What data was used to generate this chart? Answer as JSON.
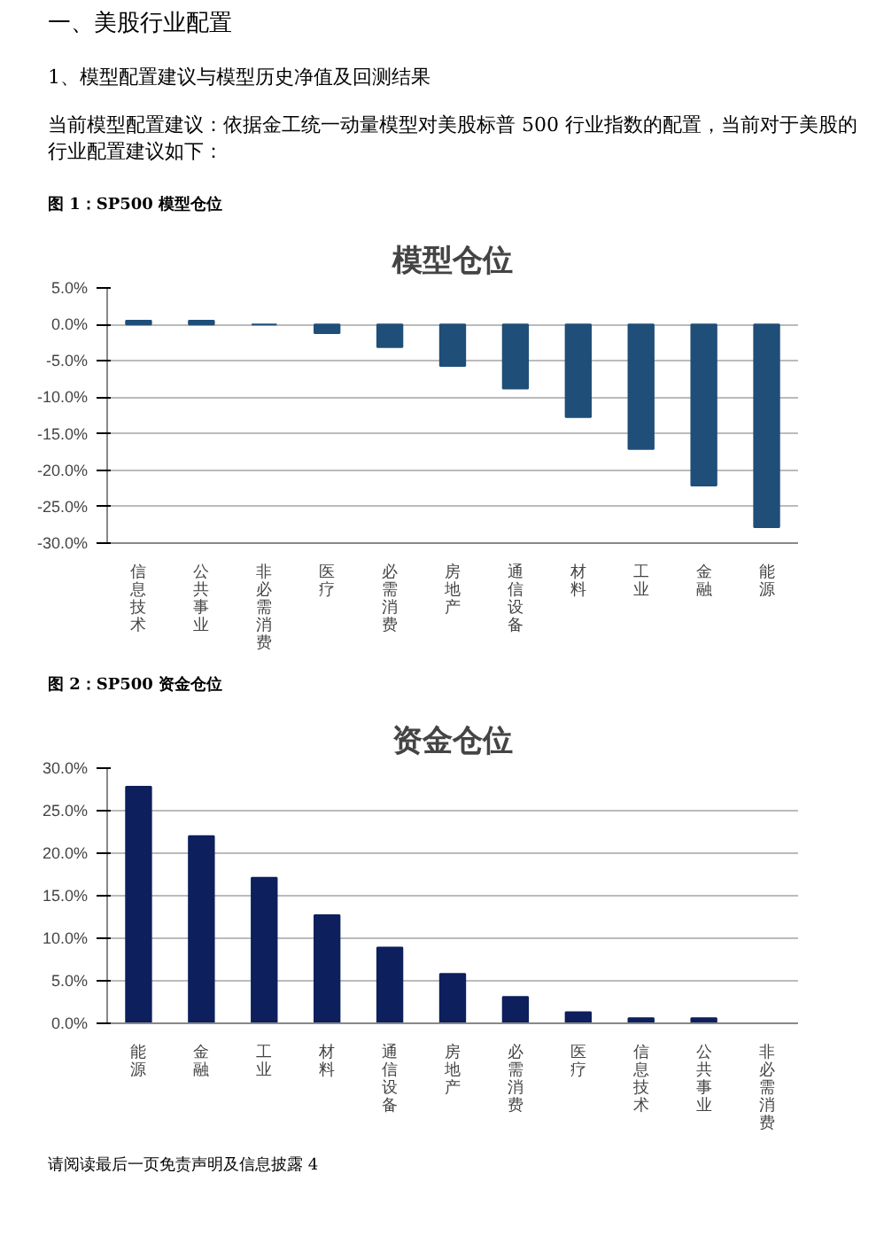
{
  "chart_data": [
    {
      "type": "bar",
      "title": "模型仓位",
      "annotations": [
        "一、美股行业配置",
        "1、模型配置建议与模型历史净值及回测结果",
        "当前模型配置建议：依据金工统一动量模型对美股标普 500 行业指数的配置，当前对于美股的行业配置建议如下：",
        "图 1：SP500 模型仓位"
      ],
      "categories": [
        "信息技术",
        "公共事业",
        "非必需消费",
        "医疗",
        "必需消费",
        "房地产",
        "通信设备",
        "材料",
        "工业",
        "金融",
        "能源"
      ],
      "values": [
        0.5,
        0.5,
        0,
        -1.2,
        -3.1,
        -5.7,
        -8.8,
        -12.7,
        -17.1,
        -22.1,
        -27.8
      ],
      "color": "#1f4e79",
      "ylim": [
        -30,
        5
      ],
      "yticks": [
        {
          "value": 5,
          "label": "5.0%"
        },
        {
          "value": 0,
          "label": "0.0%"
        },
        {
          "value": -5,
          "label": "-5.0%"
        },
        {
          "value": -10,
          "label": "-10.0%"
        },
        {
          "value": -15,
          "label": "-15.0%"
        },
        {
          "value": -20,
          "label": "-20.0%"
        },
        {
          "value": -25,
          "label": "-25.0%"
        },
        {
          "value": -30,
          "label": "-30.0%"
        }
      ],
      "grid": "y"
    },
    {
      "type": "bar",
      "title": "资金仓位",
      "annotations": [
        "图 2：SP500 资金仓位",
        "请阅读最后一页免责声明及信息披露 4"
      ],
      "categories": [
        "能源",
        "金融",
        "工业",
        "材料",
        "通信设备",
        "房地产",
        "必需消费",
        "医疗",
        "信息技术",
        "公共事业",
        "非必需消费"
      ],
      "values": [
        27.8,
        22.0,
        17.1,
        12.7,
        8.9,
        5.8,
        3.1,
        1.3,
        0.6,
        0.6,
        0
      ],
      "color": "#0d1f5c",
      "ylim": [
        0,
        30
      ],
      "yticks": [
        {
          "value": 0,
          "label": "0.0%"
        },
        {
          "value": 5,
          "label": "5.0%"
        },
        {
          "value": 10,
          "label": "10.0%"
        },
        {
          "value": 15,
          "label": "15.0%"
        },
        {
          "value": 20,
          "label": "20.0%"
        },
        {
          "value": 25,
          "label": "25.0%"
        },
        {
          "value": 30,
          "label": "30.0%"
        }
      ],
      "grid": "y"
    }
  ]
}
